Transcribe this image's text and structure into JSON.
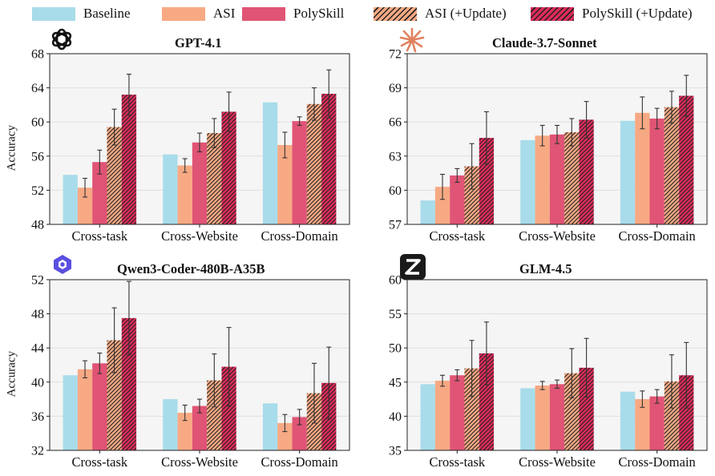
{
  "legend": {
    "items": [
      {
        "label": "Baseline",
        "color": "#a8dcea",
        "hatch": false
      },
      {
        "label": "ASI",
        "color": "#f7a983",
        "hatch": false
      },
      {
        "label": "PolySkill",
        "color": "#e05475",
        "hatch": false
      },
      {
        "label": "ASI (+Update)",
        "color": "#f7a983",
        "hatch": true
      },
      {
        "label": "PolySkill (+Update)",
        "color": "#dd2c5b",
        "hatch": true
      }
    ]
  },
  "chart_data": [
    {
      "type": "bar",
      "title": "GPT-4.1",
      "logo": "openai-logo",
      "ylabel": "Accuracy",
      "ylim": [
        48,
        68
      ],
      "yticks": [
        48,
        52,
        56,
        60,
        64,
        68
      ],
      "grid": true,
      "categories": [
        "Cross-task",
        "Cross-Website",
        "Cross-Domain"
      ],
      "series": [
        {
          "name": "Baseline",
          "values": [
            53.8,
            56.2,
            62.3
          ],
          "errors": [
            null,
            null,
            null
          ]
        },
        {
          "name": "ASI",
          "values": [
            52.3,
            54.9,
            57.3
          ],
          "errors": [
            1.1,
            0.8,
            1.5
          ]
        },
        {
          "name": "PolySkill",
          "values": [
            55.3,
            57.6,
            60.1
          ],
          "errors": [
            1.4,
            1.1,
            0.5
          ]
        },
        {
          "name": "ASI (+Update)",
          "values": [
            59.4,
            58.7,
            62.1
          ],
          "errors": [
            2.1,
            1.7,
            1.9
          ]
        },
        {
          "name": "PolySkill (+Update)",
          "values": [
            63.2,
            61.2,
            63.3
          ],
          "errors": [
            2.4,
            2.3,
            2.8
          ]
        }
      ]
    },
    {
      "type": "bar",
      "title": "Claude-3.7-Sonnet",
      "logo": "claude-logo",
      "ylabel": "",
      "ylim": [
        57,
        72
      ],
      "yticks": [
        57,
        60,
        63,
        66,
        69,
        72
      ],
      "grid": true,
      "categories": [
        "Cross-task",
        "Cross-Website",
        "Cross-Domain"
      ],
      "series": [
        {
          "name": "Baseline",
          "values": [
            59.1,
            64.4,
            66.1
          ],
          "errors": [
            null,
            null,
            null
          ]
        },
        {
          "name": "ASI",
          "values": [
            60.3,
            64.8,
            66.8
          ],
          "errors": [
            1.1,
            0.9,
            1.4
          ]
        },
        {
          "name": "PolySkill",
          "values": [
            61.3,
            64.9,
            66.3
          ],
          "errors": [
            0.6,
            0.8,
            0.9
          ]
        },
        {
          "name": "ASI (+Update)",
          "values": [
            62.1,
            65.1,
            67.3
          ],
          "errors": [
            2.0,
            1.2,
            1.4
          ]
        },
        {
          "name": "PolySkill (+Update)",
          "values": [
            64.6,
            66.2,
            68.3
          ],
          "errors": [
            2.3,
            1.6,
            1.8
          ]
        }
      ]
    },
    {
      "type": "bar",
      "title": "Qwen3-Coder-480B-A35B",
      "logo": "qwen-logo",
      "ylabel": "Accuracy",
      "ylim": [
        32,
        52
      ],
      "yticks": [
        32,
        36,
        40,
        44,
        48,
        52
      ],
      "grid": true,
      "categories": [
        "Cross-task",
        "Cross-Website",
        "Cross-Domain"
      ],
      "series": [
        {
          "name": "Baseline",
          "values": [
            40.8,
            38.0,
            37.5
          ],
          "errors": [
            null,
            null,
            null
          ]
        },
        {
          "name": "ASI",
          "values": [
            41.5,
            36.4,
            35.2
          ],
          "errors": [
            1.0,
            0.9,
            1.0
          ]
        },
        {
          "name": "PolySkill",
          "values": [
            42.2,
            37.2,
            35.9
          ],
          "errors": [
            1.2,
            0.8,
            0.9
          ]
        },
        {
          "name": "ASI (+Update)",
          "values": [
            44.9,
            40.2,
            38.7
          ],
          "errors": [
            3.8,
            3.1,
            3.5
          ]
        },
        {
          "name": "PolySkill (+Update)",
          "values": [
            47.5,
            41.8,
            39.9
          ],
          "errors": [
            4.3,
            4.6,
            4.2
          ]
        }
      ]
    },
    {
      "type": "bar",
      "title": "GLM-4.5",
      "logo": "zhipu-logo",
      "ylabel": "",
      "ylim": [
        35,
        60
      ],
      "yticks": [
        35,
        40,
        45,
        50,
        55,
        60
      ],
      "grid": true,
      "categories": [
        "Cross-task",
        "Cross-Website",
        "Cross-Domain"
      ],
      "series": [
        {
          "name": "Baseline",
          "values": [
            44.7,
            44.1,
            43.6
          ],
          "errors": [
            null,
            null,
            null
          ]
        },
        {
          "name": "ASI",
          "values": [
            45.2,
            44.5,
            42.5
          ],
          "errors": [
            0.8,
            0.6,
            1.2
          ]
        },
        {
          "name": "PolySkill",
          "values": [
            46.0,
            44.7,
            42.9
          ],
          "errors": [
            0.8,
            0.6,
            1.0
          ]
        },
        {
          "name": "ASI (+Update)",
          "values": [
            47.0,
            46.3,
            45.1
          ],
          "errors": [
            4.1,
            3.6,
            3.9
          ]
        },
        {
          "name": "PolySkill (+Update)",
          "values": [
            49.2,
            47.1,
            46.0
          ],
          "errors": [
            4.6,
            4.3,
            4.8
          ]
        }
      ]
    }
  ]
}
